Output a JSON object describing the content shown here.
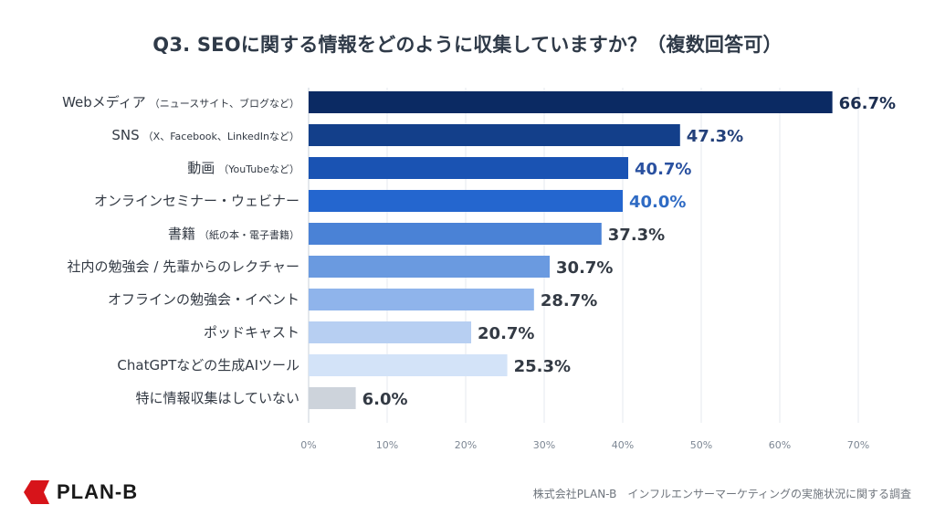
{
  "chart_data": {
    "type": "bar",
    "orientation": "horizontal",
    "title": "Q3. SEOに関する情報をどのように収集していますか？（複数回答可）",
    "xlabel": "",
    "ylabel": "",
    "xlim": [
      0,
      70
    ],
    "grid": true,
    "ticks": [
      "0%",
      "10%",
      "20%",
      "30%",
      "40%",
      "50%",
      "60%",
      "70%"
    ],
    "tick_values": [
      0,
      10,
      20,
      30,
      40,
      50,
      60,
      70
    ],
    "categories": [
      {
        "main": "Webメディア",
        "sub": "（ニュースサイト、ブログなど）"
      },
      {
        "main": "SNS",
        "sub": "（X、Facebook、LinkedInなど）"
      },
      {
        "main": "動画",
        "sub": "（YouTubeなど）"
      },
      {
        "main": "オンラインセミナー・ウェビナー",
        "sub": ""
      },
      {
        "main": "書籍",
        "sub": "（紙の本・電子書籍）"
      },
      {
        "main": "社内の勉強会 / 先輩からのレクチャー",
        "sub": ""
      },
      {
        "main": "オフラインの勉強会・イベント",
        "sub": ""
      },
      {
        "main": "ポッドキャスト",
        "sub": ""
      },
      {
        "main": "ChatGPTなどの生成AIツール",
        "sub": ""
      },
      {
        "main": "特に情報収集はしていない",
        "sub": ""
      }
    ],
    "values": [
      66.7,
      47.3,
      40.7,
      40.0,
      37.3,
      30.7,
      28.7,
      20.7,
      25.3,
      6.0
    ],
    "value_labels": [
      "66.7%",
      "47.3%",
      "40.7%",
      "40.0%",
      "37.3%",
      "30.7%",
      "28.7%",
      "20.7%",
      "25.3%",
      "6.0%"
    ],
    "bar_colors": [
      "#0b2a63",
      "#133f8a",
      "#1a53b3",
      "#2466cf",
      "#4a82d6",
      "#6a9ae0",
      "#8fb4eb",
      "#b7cff2",
      "#d3e3f8",
      "#cdd3db"
    ],
    "label_colors": [
      "#1c2e50",
      "#23407a",
      "#2a51a0",
      "#2f6bc4",
      "#333a44",
      "#333a44",
      "#333a44",
      "#333a44",
      "#333a44",
      "#333a44"
    ]
  },
  "footer": {
    "logo_text": "PLAN-B",
    "logo_color": "#d7141a",
    "source": "株式会社PLAN-B　インフルエンサーマーケティングの実施状況に関する調査"
  }
}
